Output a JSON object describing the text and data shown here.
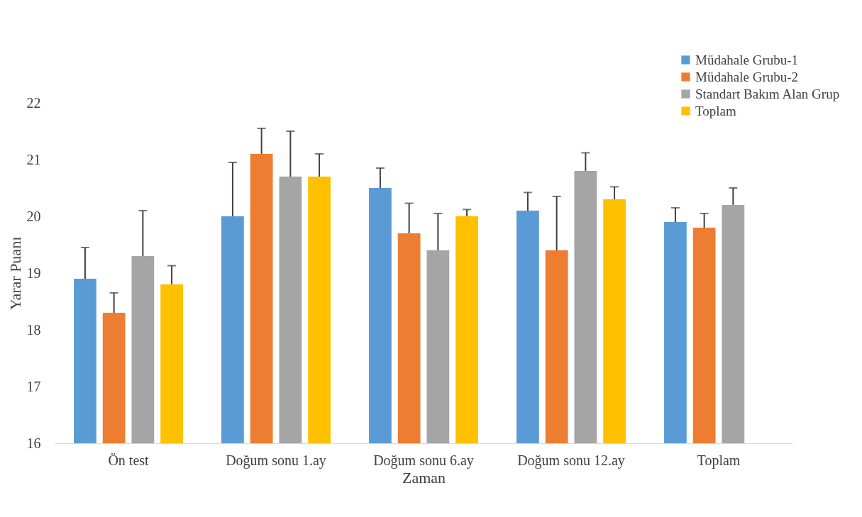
{
  "chart_data": {
    "type": "bar",
    "xlabel": "Zaman",
    "ylabel": "Yarar  Puanı",
    "categories": [
      "Ön test",
      "Doğum sonu 1.ay",
      "Doğum sonu 6.ay",
      "Doğum sonu 12.ay",
      "Toplam"
    ],
    "series": [
      {
        "name": "Müdahale Grubu-1",
        "color": "#5b9bd5",
        "values": [
          18.9,
          20.0,
          20.5,
          20.1,
          19.9
        ],
        "errors": [
          [
            18.9,
            19.45
          ],
          [
            20.0,
            20.95
          ],
          [
            20.5,
            20.85
          ],
          [
            20.1,
            20.42
          ],
          [
            19.9,
            20.15
          ]
        ]
      },
      {
        "name": "Müdahale Grubu-2",
        "color": "#ed7d31",
        "values": [
          18.3,
          21.1,
          19.7,
          19.4,
          19.8
        ],
        "errors": [
          [
            18.3,
            18.65
          ],
          [
            21.1,
            21.55
          ],
          [
            19.7,
            20.23
          ],
          [
            19.4,
            20.35
          ],
          [
            19.8,
            20.05
          ]
        ]
      },
      {
        "name": "Standart Bakım Alan Grup",
        "color": "#a5a5a5",
        "values": [
          19.3,
          20.7,
          19.4,
          20.8,
          20.2
        ],
        "errors": [
          [
            19.3,
            20.1
          ],
          [
            20.7,
            21.5
          ],
          [
            19.4,
            20.05
          ],
          [
            20.8,
            21.12
          ],
          [
            20.2,
            20.5
          ]
        ]
      },
      {
        "name": "Toplam",
        "color": "#ffc000",
        "values": [
          18.8,
          20.7,
          20.0,
          20.3,
          null
        ],
        "errors": [
          [
            18.8,
            19.13
          ],
          [
            20.7,
            21.1
          ],
          [
            20.0,
            20.12
          ],
          [
            20.3,
            20.52
          ],
          null
        ]
      }
    ],
    "ylim": [
      16,
      22
    ],
    "yticks": [
      16,
      17,
      18,
      19,
      20,
      21,
      22
    ],
    "grid": false,
    "legend": "top right"
  }
}
